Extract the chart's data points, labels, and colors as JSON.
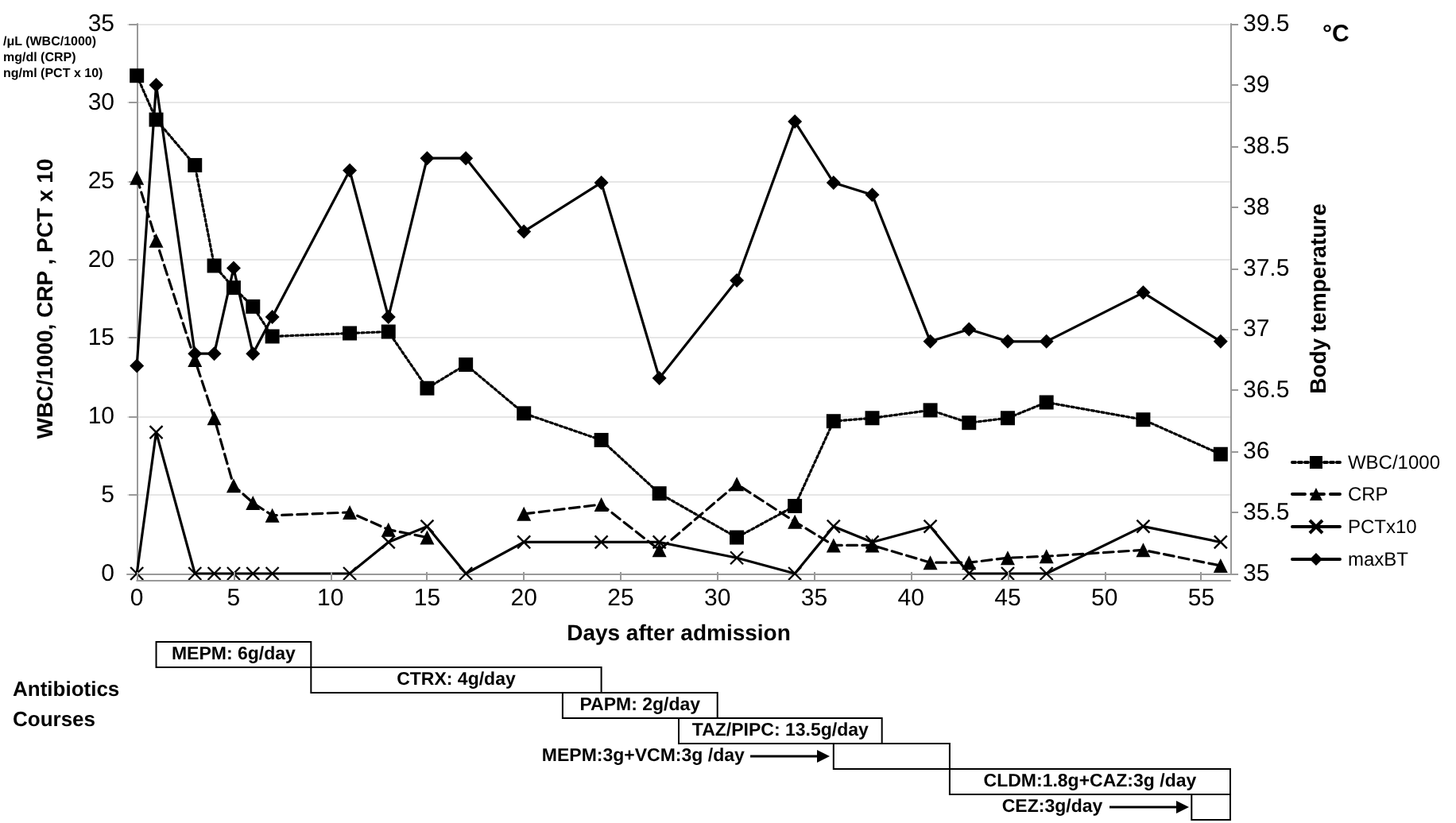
{
  "chart_data": [
    {
      "type": "line",
      "xlabel": "Days after admission",
      "ylabel": "WBC/1000, CRP , PCT x 10",
      "y2label": "Body temperature",
      "annotations": [
        "/μL (WBC/1000)",
        "mg/dl (CRP)",
        "ng/ml (PCT x 10)",
        "°C"
      ],
      "x": [
        0,
        1,
        3,
        4,
        5,
        6,
        7,
        11,
        13,
        15,
        17,
        20,
        24,
        27,
        31,
        34,
        36,
        38,
        41,
        43,
        45,
        47,
        52,
        56
      ],
      "series": [
        {
          "name": "WBC/1000",
          "color": "#000000",
          "marker": "square",
          "line_style": "dotted",
          "values": [
            31.7,
            28.9,
            26.0,
            19.6,
            18.2,
            17.0,
            15.1,
            15.3,
            15.4,
            11.8,
            13.3,
            10.2,
            8.5,
            5.1,
            2.3,
            4.3,
            9.7,
            9.9,
            10.4,
            9.6,
            9.9,
            10.9,
            9.8,
            7.6
          ]
        },
        {
          "name": "CRP",
          "color": "#000000",
          "marker": "triangle",
          "line_style": "dashed",
          "values": [
            25.2,
            21.2,
            13.6,
            9.9,
            5.6,
            4.5,
            3.7,
            3.9,
            2.8,
            2.3,
            null,
            3.8,
            4.4,
            1.5,
            5.7,
            3.3,
            1.8,
            1.8,
            0.7,
            0.7,
            1.0,
            1.1,
            1.5,
            0.5
          ]
        },
        {
          "name": "PCTx10",
          "color": "#000000",
          "marker": "cross",
          "line_style": "solid",
          "values": [
            0,
            9,
            0,
            0,
            0,
            0,
            0,
            0,
            2,
            3,
            0,
            2,
            2,
            2,
            1,
            0,
            3,
            2,
            3,
            0,
            0,
            0,
            3,
            2
          ]
        },
        {
          "name": "maxBT",
          "color": "#000000",
          "marker": "diamond",
          "line_style": "solid",
          "axis": "y2",
          "values": [
            36.7,
            39.0,
            36.8,
            36.8,
            37.5,
            36.8,
            37.1,
            38.3,
            37.1,
            38.4,
            38.4,
            37.8,
            38.2,
            36.6,
            37.4,
            38.7,
            38.2,
            38.1,
            36.9,
            37.0,
            36.9,
            36.9,
            37.3,
            36.9
          ]
        }
      ],
      "xlim": [
        -0.5,
        56.5
      ],
      "xticks": [
        0,
        5,
        10,
        15,
        20,
        25,
        30,
        35,
        40,
        45,
        50,
        55
      ],
      "ylim": [
        0,
        35
      ],
      "yticks": [
        0,
        5,
        10,
        15,
        20,
        25,
        30,
        35
      ],
      "y2lim": [
        35,
        39.5
      ],
      "y2ticks": [
        35,
        35.5,
        36,
        36.5,
        37,
        37.5,
        38,
        38.5,
        39,
        39.5
      ],
      "grid": "y",
      "legend": "right"
    },
    {
      "type": "bar",
      "orientation": "horizontal",
      "ylabel": "Antibiotics Courses",
      "categories": [
        "MEPM: 6g/day",
        "CTRX: 4g/day",
        "PAPM: 2g/day",
        "TAZ/PIPC: 13.5g/day",
        "MEPM:3g+VCM:3g /day",
        "CLDM:1.8g+CAZ:3g /day",
        "CEZ:3g/day"
      ],
      "base": [
        1,
        9,
        22,
        28,
        36,
        42,
        54.5
      ],
      "values": [
        8,
        15,
        8,
        10.5,
        6,
        14.5,
        2
      ],
      "color": "#ffffff",
      "xlim": [
        0,
        56.5
      ],
      "xticks": [
        0,
        5,
        10,
        15,
        20,
        25,
        30,
        35,
        40,
        45,
        50,
        55
      ],
      "tick_labels": false
    }
  ]
}
